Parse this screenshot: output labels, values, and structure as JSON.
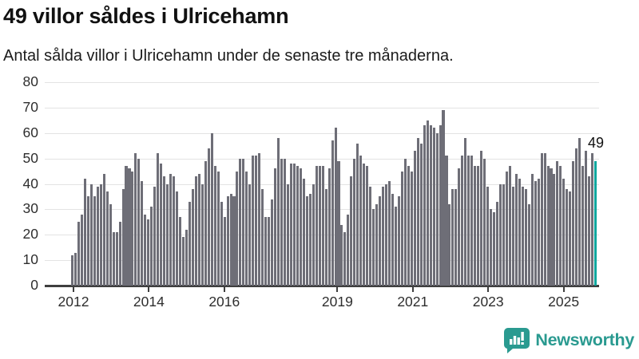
{
  "header": {
    "title": "49 villor såldes i Ulricehamn",
    "subtitle": "Antal sålda villor i Ulricehamn under de senaste tre månaderna."
  },
  "chart_data": {
    "type": "bar",
    "title": "49 villor såldes i Ulricehamn",
    "subtitle": "Antal sålda villor i Ulricehamn under de senaste tre månaderna.",
    "frequency": "monthly rolling 3-month sum",
    "x_range_years": [
      2012,
      2025
    ],
    "x_tick_labels": [
      "2012",
      "2014",
      "2016",
      "2019",
      "2021",
      "2023",
      "2025"
    ],
    "x_tick_years": [
      2012,
      2014,
      2016,
      2019,
      2021,
      2023,
      2025
    ],
    "y_ticks": [
      0,
      10,
      20,
      30,
      40,
      50,
      60,
      70,
      80
    ],
    "ylim": [
      0,
      80
    ],
    "grid": "horizontal",
    "values": [
      12,
      13,
      25,
      28,
      42,
      35,
      40,
      35,
      39,
      40,
      44,
      37,
      32,
      21,
      21,
      25,
      38,
      47,
      46,
      45,
      52,
      50,
      41,
      28,
      26,
      31,
      39,
      52,
      48,
      43,
      40,
      44,
      43,
      37,
      27,
      19,
      22,
      33,
      38,
      43,
      44,
      40,
      49,
      54,
      60,
      47,
      45,
      33,
      27,
      35,
      36,
      35,
      45,
      50,
      50,
      45,
      40,
      51,
      51,
      52,
      38,
      27,
      27,
      34,
      46,
      58,
      50,
      50,
      40,
      48,
      48,
      47,
      46,
      42,
      35,
      36,
      40,
      47,
      47,
      47,
      38,
      46,
      57,
      62,
      49,
      24,
      21,
      28,
      43,
      50,
      56,
      51,
      48,
      47,
      39,
      30,
      32,
      35,
      39,
      40,
      41,
      36,
      31,
      35,
      45,
      50,
      47,
      45,
      53,
      58,
      56,
      63,
      65,
      63,
      62,
      60,
      63,
      69,
      51,
      32,
      38,
      38,
      46,
      51,
      58,
      51,
      51,
      47,
      47,
      53,
      50,
      39,
      30,
      29,
      33,
      40,
      40,
      45,
      47,
      39,
      44,
      42,
      39,
      38,
      32,
      44,
      41,
      42,
      52,
      52,
      47,
      46,
      44,
      49,
      47,
      42,
      38,
      37,
      49,
      54,
      58,
      47,
      53,
      43,
      52,
      49
    ],
    "highlight_last": true,
    "last_value_label": "49",
    "colors": {
      "bar": "#6E6E77",
      "highlight": "#0AA79E",
      "grid": "#E3E3E3",
      "axis": "#3F3F3F",
      "label": "#2E2E2E"
    }
  },
  "annotation": {
    "latest_value": "49"
  },
  "footer": {
    "brand": "Newsworthy",
    "brand_color": "#2A9A90"
  }
}
